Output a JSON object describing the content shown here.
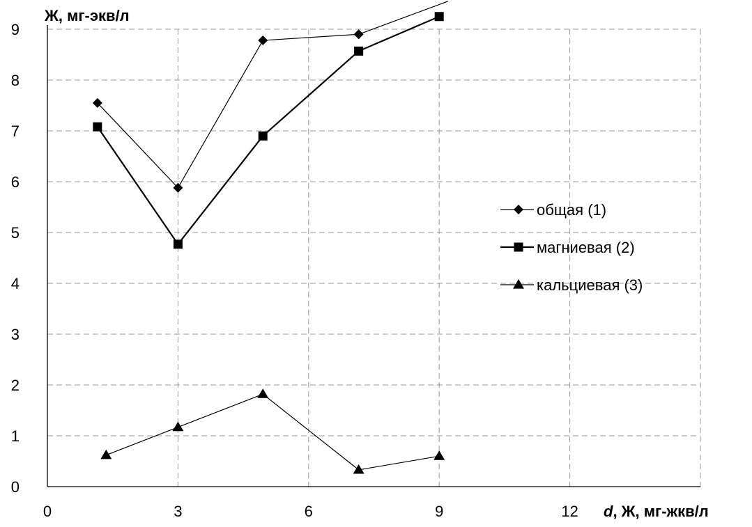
{
  "chart_data": {
    "type": "line",
    "ylabel": "Ж, мг-экв/л",
    "xlabel_italic": "d",
    "xlabel_rest": ", Ж, мг-жкв/л",
    "xlim": [
      0,
      15
    ],
    "ylim": [
      0,
      9
    ],
    "xticks": [
      0,
      3,
      6,
      9,
      12
    ],
    "yticks": [
      0,
      1,
      2,
      3,
      4,
      5,
      6,
      7,
      8,
      9
    ],
    "grid": true,
    "legend_position": "right",
    "series": [
      {
        "name": "общая (1)",
        "marker": "diamond",
        "points": [
          [
            1.15,
            7.55
          ],
          [
            3.0,
            5.88
          ],
          [
            4.95,
            8.78
          ],
          [
            7.15,
            8.9
          ],
          [
            9.2,
            9.55
          ]
        ]
      },
      {
        "name": "магниевая (2)",
        "marker": "square",
        "points": [
          [
            1.15,
            7.08
          ],
          [
            3.0,
            4.77
          ],
          [
            4.95,
            6.9
          ],
          [
            7.15,
            8.57
          ],
          [
            9.0,
            9.25
          ]
        ]
      },
      {
        "name": "кальциевая (3)",
        "marker": "triangle",
        "points": [
          [
            1.35,
            0.62
          ],
          [
            3.0,
            1.17
          ],
          [
            4.95,
            1.82
          ],
          [
            7.15,
            0.33
          ],
          [
            9.0,
            0.6
          ]
        ]
      }
    ]
  }
}
